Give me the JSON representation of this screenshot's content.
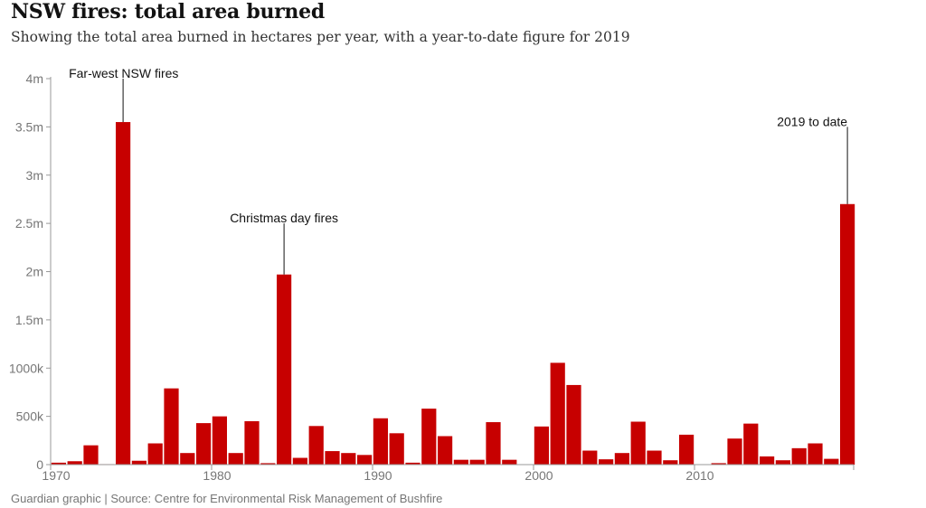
{
  "title": "NSW fires: total area burned",
  "subtitle": "Showing the total area burned in hectares per year, with a year-to-date figure for 2019",
  "source": "Guardian graphic | Source: Centre for Environmental Risk Management of Bushfire",
  "colors": {
    "bar": "#c70000",
    "axis": "#999999",
    "tick_text": "#767676",
    "annotation_line": "#121212"
  },
  "chart_data": {
    "type": "bar",
    "x": [
      1970,
      1971,
      1972,
      1973,
      1974,
      1975,
      1976,
      1977,
      1978,
      1979,
      1980,
      1981,
      1982,
      1983,
      1984,
      1985,
      1986,
      1987,
      1988,
      1989,
      1990,
      1991,
      1992,
      1993,
      1994,
      1995,
      1996,
      1997,
      1998,
      1999,
      2000,
      2001,
      2002,
      2003,
      2004,
      2005,
      2006,
      2007,
      2008,
      2009,
      2010,
      2011,
      2012,
      2013,
      2014,
      2015,
      2016,
      2017,
      2018,
      2019
    ],
    "values": [
      20000,
      35000,
      200000,
      5000,
      3550000,
      40000,
      220000,
      790000,
      120000,
      430000,
      500000,
      120000,
      450000,
      15000,
      1970000,
      70000,
      400000,
      140000,
      120000,
      100000,
      480000,
      325000,
      20000,
      580000,
      295000,
      50000,
      50000,
      440000,
      50000,
      0,
      395000,
      1055000,
      825000,
      145000,
      55000,
      120000,
      445000,
      145000,
      45000,
      310000,
      0,
      15000,
      270000,
      425000,
      85000,
      45000,
      170000,
      220000,
      60000,
      2700000
    ],
    "ylim": [
      0,
      4000000
    ],
    "y_ticks": [
      {
        "value": 0,
        "label": "0"
      },
      {
        "value": 500000,
        "label": "500k"
      },
      {
        "value": 1000000,
        "label": "1000k"
      },
      {
        "value": 1500000,
        "label": "1.5m"
      },
      {
        "value": 2000000,
        "label": "2m"
      },
      {
        "value": 2500000,
        "label": "2.5m"
      },
      {
        "value": 3000000,
        "label": "3m"
      },
      {
        "value": 3500000,
        "label": "3.5m"
      },
      {
        "value": 4000000,
        "label": "4m"
      }
    ],
    "x_ticks": [
      1970,
      1980,
      1990,
      2000,
      2010
    ],
    "grid": false,
    "annotations": [
      {
        "year": 1974,
        "text": "Far-west NSW fires",
        "top_value": 4000000,
        "align": "start"
      },
      {
        "year": 1984,
        "text": "Christmas day fires",
        "top_value": 2500000,
        "align": "middle"
      },
      {
        "year": 2019,
        "text": "2019 to date",
        "top_value": 3500000,
        "align": "end"
      }
    ]
  }
}
